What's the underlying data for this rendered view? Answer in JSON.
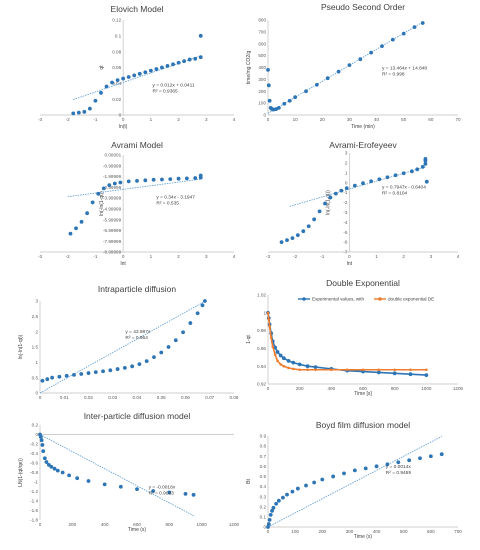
{
  "colors": {
    "points": "#2E75B6",
    "trend": "#5B9BD5",
    "orange": "#ED7D31",
    "axis": "#BFBFBF",
    "grid": "#D9D9D9",
    "text": "#404040"
  },
  "chart_data": [
    {
      "id": "elovich",
      "type": "scatter",
      "title": "Elovich Model",
      "xlabel": "ln(t)",
      "ylabel": "qt",
      "xlim": [
        -3,
        4
      ],
      "ylim": [
        0,
        0.12
      ],
      "xticks": [
        -3,
        -2,
        -1,
        0,
        1,
        2,
        3,
        4
      ],
      "yticks": [
        0,
        0.02,
        0.04,
        0.06,
        0.08,
        0.1,
        0.12
      ],
      "ytick_labels": [
        "0",
        "0.02",
        "0.04",
        "0.06",
        "0.08",
        "0.1",
        "0.12"
      ],
      "axis_cross": 0,
      "annotations": [
        "y = 0.012x + 0.0411",
        "R² = 0.9365"
      ],
      "series": [
        {
          "x": [
            -1.8,
            -1.6,
            -1.4,
            -1.2,
            -1.0,
            -0.8,
            -0.6,
            -0.4,
            -0.2,
            0,
            0.2,
            0.4,
            0.6,
            0.8,
            1.0,
            1.2,
            1.4,
            1.6,
            1.8,
            2.0,
            2.2,
            2.4,
            2.6,
            2.8,
            2.8
          ],
          "y": [
            0.002,
            0.003,
            0.004,
            0.008,
            0.018,
            0.028,
            0.036,
            0.041,
            0.044,
            0.046,
            0.048,
            0.05,
            0.052,
            0.054,
            0.056,
            0.058,
            0.06,
            0.062,
            0.064,
            0.066,
            0.068,
            0.07,
            0.071,
            0.073,
            0.1
          ]
        }
      ],
      "trendline": {
        "x": [
          -1.8,
          2.8
        ],
        "y": [
          0.0195,
          0.0747
        ]
      }
    },
    {
      "id": "pseudo",
      "type": "scatter",
      "title": "Pseudo Second Order",
      "xlabel": "Time (min)",
      "ylabel": "time/mg CO2/g",
      "xlim": [
        0,
        70
      ],
      "ylim": [
        0,
        800
      ],
      "xticks": [
        0,
        10,
        20,
        30,
        40,
        50,
        60,
        70
      ],
      "yticks": [
        0,
        100,
        200,
        300,
        400,
        500,
        600,
        700,
        800
      ],
      "axis_cross": 0,
      "annotations": [
        "y = 13.464x + 14.848",
        "R² = 0.998"
      ],
      "series": [
        {
          "x": [
            0,
            0.3,
            0.6,
            1,
            1.5,
            2,
            3,
            4,
            6,
            8,
            10,
            14,
            18,
            22,
            26,
            30,
            34,
            38,
            42,
            46,
            50,
            54,
            57
          ],
          "y": [
            380,
            250,
            120,
            60,
            50,
            45,
            50,
            60,
            95,
            120,
            150,
            200,
            255,
            310,
            365,
            420,
            470,
            525,
            580,
            635,
            685,
            740,
            775
          ]
        }
      ],
      "trendline": {
        "x": [
          0,
          57
        ],
        "y": [
          14.848,
          782.3
        ]
      }
    },
    {
      "id": "avrami",
      "type": "scatter",
      "title": "Avrami Model",
      "xlabel": "lnt",
      "ylabel": "ln(-ln(1-qt))",
      "xlim": [
        -3,
        4
      ],
      "ylim": [
        -8.99999,
        1e-05
      ],
      "xticks": [
        -3,
        -2,
        -1,
        0,
        1,
        2,
        3,
        4
      ],
      "yticks": [
        1e-05,
        -0.99999,
        -1.99999,
        -2.99999,
        -3.99999,
        -4.99999,
        -5.99999,
        -6.99999,
        -7.99999,
        -8.99999
      ],
      "ytick_labels": [
        "0.00001",
        "-0.99999",
        "-1.99999",
        "-2.99999",
        "-3.99999",
        "-4.99999",
        "-5.99999",
        "-6.99999",
        "-7.99999",
        "-8.99999"
      ],
      "axis_cross": -8.99999,
      "annotations": [
        "y = 0.34x - 3.1947",
        "R² = 0.535"
      ],
      "series": [
        {
          "x": [
            -1.9,
            -1.7,
            -1.5,
            -1.3,
            -1.1,
            -0.9,
            -0.7,
            -0.5,
            -0.3,
            -0.1,
            0.2,
            0.5,
            0.8,
            1.1,
            1.4,
            1.7,
            2.0,
            2.3,
            2.6,
            2.8,
            2.8
          ],
          "y": [
            -7.3,
            -6.8,
            -6.2,
            -5.4,
            -4.4,
            -3.6,
            -3.1,
            -2.8,
            -2.65,
            -2.55,
            -2.45,
            -2.4,
            -2.35,
            -2.3,
            -2.27,
            -2.24,
            -2.2,
            -2.17,
            -2.14,
            -2.1,
            -1.9
          ]
        }
      ],
      "trendline": {
        "x": [
          -2.0,
          2.8
        ],
        "y": [
          -3.87,
          -2.24
        ]
      }
    },
    {
      "id": "avrami-erofeyeev",
      "type": "scatter",
      "title": "Avrami-Erofeyeev",
      "xlabel": "lnt",
      "ylabel": "ln(-ln(1-qt))",
      "xlim": [
        -3,
        4
      ],
      "ylim": [
        -7,
        3
      ],
      "xticks": [
        -3,
        -2,
        -1,
        0,
        1,
        2,
        3,
        4
      ],
      "yticks": [
        3,
        2,
        1,
        0,
        -1,
        -2,
        -3,
        -4,
        -5,
        -6,
        -7
      ],
      "axis_cross": -7,
      "annotations": [
        "y = 0.7947x - 0.6404",
        "R² = 0.8104"
      ],
      "series": [
        {
          "x": [
            -2.5,
            -2.3,
            -2.1,
            -1.9,
            -1.7,
            -1.5,
            -1.3,
            -1.1,
            -0.9,
            -0.7,
            -0.5,
            -0.3,
            -0.1,
            0.2,
            0.5,
            0.8,
            1.1,
            1.4,
            1.7,
            2.0,
            2.3,
            2.5,
            2.7,
            2.8,
            2.8,
            2.8,
            2.85
          ],
          "y": [
            -6.0,
            -5.8,
            -5.6,
            -5.3,
            -4.9,
            -4.4,
            -3.7,
            -2.9,
            -2.1,
            -1.5,
            -1.1,
            -0.8,
            -0.55,
            -0.3,
            -0.05,
            0.15,
            0.35,
            0.55,
            0.75,
            0.95,
            1.15,
            1.35,
            1.6,
            1.9,
            2.2,
            2.4,
            0.1
          ]
        }
      ],
      "trendline": {
        "x": [
          -2.2,
          2.8
        ],
        "y": [
          -2.39,
          1.59
        ]
      }
    },
    {
      "id": "intraparticle",
      "type": "scatter",
      "title": "Intraparticle diffusion",
      "xlabel": "",
      "ylabel": "ln(-ln(1-qt))",
      "xlim": [
        0,
        0.08
      ],
      "ylim": [
        0,
        3
      ],
      "xticks": [
        0,
        0.01,
        0.02,
        0.03,
        0.04,
        0.05,
        0.06,
        0.07,
        0.08
      ],
      "yticks": [
        0,
        0.5,
        1,
        1.5,
        2,
        2.5,
        3
      ],
      "axis_cross": 0,
      "annotations": [
        "y = 43.987x",
        "R² = 0.964"
      ],
      "series": [
        {
          "x": [
            0.001,
            0.003,
            0.005,
            0.008,
            0.011,
            0.014,
            0.017,
            0.02,
            0.023,
            0.026,
            0.029,
            0.032,
            0.035,
            0.038,
            0.041,
            0.044,
            0.047,
            0.05,
            0.053,
            0.056,
            0.059,
            0.062,
            0.065,
            0.067,
            0.068
          ],
          "y": [
            0.4,
            0.45,
            0.5,
            0.53,
            0.56,
            0.59,
            0.62,
            0.65,
            0.68,
            0.71,
            0.74,
            0.78,
            0.82,
            0.87,
            0.94,
            1.04,
            1.17,
            1.32,
            1.5,
            1.72,
            1.98,
            2.28,
            2.6,
            2.86,
            3.0
          ]
        }
      ],
      "trendline": {
        "x": [
          0,
          0.068
        ],
        "y": [
          0,
          2.99
        ]
      }
    },
    {
      "id": "double-exp",
      "type": "line",
      "title": "Double Exponential",
      "xlabel": "Time [s]",
      "ylabel": "1-qt",
      "xlim": [
        0,
        1200
      ],
      "ylim": [
        0.92,
        1.02
      ],
      "xticks": [
        0,
        200,
        400,
        600,
        800,
        1000,
        1200
      ],
      "yticks": [
        0.92,
        0.94,
        0.96,
        0.98,
        1,
        1.02
      ],
      "axis_cross": 0.92,
      "legend": "top",
      "series": [
        {
          "name": "Experimental values, with",
          "style": "points",
          "x": [
            0,
            5,
            10,
            20,
            30,
            45,
            60,
            80,
            100,
            130,
            160,
            200,
            250,
            300,
            400,
            500,
            600,
            700,
            800,
            900,
            1000
          ],
          "y": [
            1.0,
            0.994,
            0.987,
            0.977,
            0.968,
            0.961,
            0.956,
            0.952,
            0.949,
            0.946,
            0.944,
            0.942,
            0.94,
            0.939,
            0.937,
            0.935,
            0.934,
            0.933,
            0.932,
            0.931,
            0.93
          ]
        },
        {
          "name": "double exponential DE",
          "style": "orange",
          "x": [
            0,
            5,
            10,
            20,
            30,
            45,
            60,
            80,
            100,
            130,
            160,
            200,
            250,
            300,
            400,
            500,
            600,
            700,
            800,
            900,
            1000
          ],
          "y": [
            1.0,
            0.993,
            0.985,
            0.972,
            0.962,
            0.953,
            0.946,
            0.942,
            0.94,
            0.938,
            0.937,
            0.936,
            0.936,
            0.936,
            0.936,
            0.936,
            0.936,
            0.936,
            0.936,
            0.936,
            0.936
          ]
        }
      ]
    },
    {
      "id": "inter-particle",
      "type": "scatter",
      "title": "Inter-particle diffusion model",
      "xlabel": "Time (s)",
      "ylabel": "LN(1-(qt/qe))",
      "xlim": [
        0,
        1200
      ],
      "ylim": [
        -1.8,
        0.2
      ],
      "xticks": [
        0,
        200,
        400,
        600,
        800,
        1000,
        1200
      ],
      "yticks": [
        0.2,
        0,
        -0.2,
        -0.4,
        -0.6,
        -0.8,
        -1,
        -1.2,
        -1.4,
        -1.6,
        -1.8
      ],
      "axis_cross": 0,
      "annotations": [
        "y = -0.0018x",
        "R² = 0.9023"
      ],
      "series": [
        {
          "x": [
            0,
            5,
            10,
            15,
            20,
            30,
            40,
            55,
            70,
            90,
            110,
            140,
            180,
            230,
            300,
            400,
            500,
            600,
            700,
            800,
            900,
            950
          ],
          "y": [
            0,
            -0.05,
            -0.12,
            -0.22,
            -0.35,
            -0.5,
            -0.58,
            -0.64,
            -0.68,
            -0.72,
            -0.76,
            -0.8,
            -0.86,
            -0.92,
            -0.98,
            -1.05,
            -1.1,
            -1.15,
            -1.19,
            -1.22,
            -1.25,
            -1.27
          ]
        }
      ],
      "trendline": {
        "x": [
          0,
          950
        ],
        "y": [
          0,
          -1.71
        ]
      }
    },
    {
      "id": "boyd",
      "type": "scatter",
      "title": "Boyd film diffusion model",
      "xlabel": "Time (s)",
      "ylabel": "Bt",
      "xlim": [
        0,
        700
      ],
      "ylim": [
        0,
        0.9
      ],
      "xticks": [
        0,
        100,
        200,
        300,
        400,
        500,
        600,
        700
      ],
      "yticks": [
        0,
        0.1,
        0.2,
        0.3,
        0.4,
        0.5,
        0.6,
        0.7,
        0.8,
        0.9
      ],
      "axis_cross": 0,
      "annotations": [
        "y = 0.0014x",
        "R² = 0.9469"
      ],
      "series": [
        {
          "x": [
            0,
            3,
            6,
            10,
            15,
            20,
            30,
            40,
            55,
            70,
            90,
            110,
            140,
            170,
            200,
            240,
            280,
            320,
            360,
            400,
            440,
            480,
            520,
            560,
            600,
            640
          ],
          "y": [
            0,
            0.03,
            0.07,
            0.12,
            0.16,
            0.19,
            0.23,
            0.26,
            0.29,
            0.32,
            0.35,
            0.38,
            0.41,
            0.44,
            0.47,
            0.5,
            0.53,
            0.56,
            0.58,
            0.6,
            0.62,
            0.64,
            0.66,
            0.68,
            0.7,
            0.72
          ]
        }
      ],
      "trendline": {
        "x": [
          0,
          640
        ],
        "y": [
          0,
          0.896
        ]
      }
    }
  ]
}
